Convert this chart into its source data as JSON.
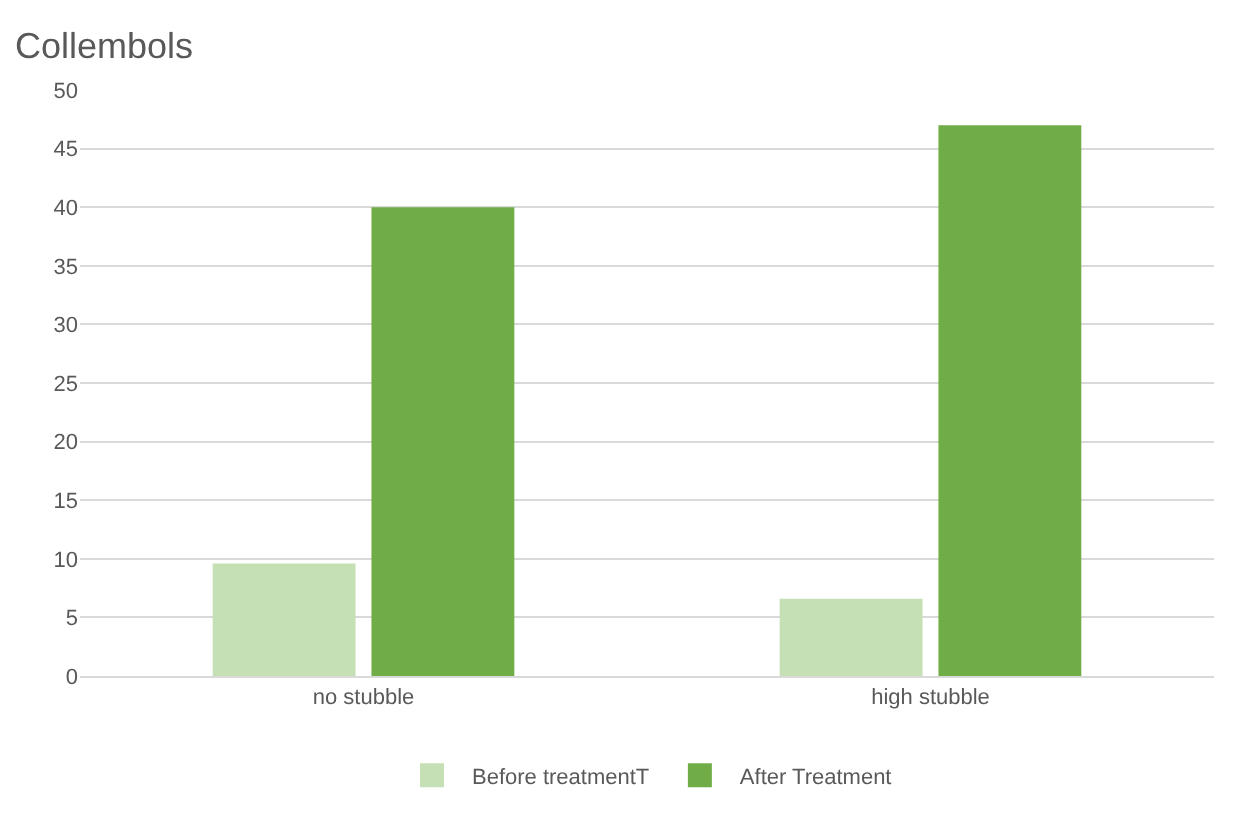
{
  "chart_data": {
    "type": "bar",
    "title": "Collembols",
    "categories": [
      "no stubble",
      "high stubble"
    ],
    "series": [
      {
        "name": "Before treatmentT",
        "color": "#c5e0b4",
        "values": [
          9.6,
          6.6
        ]
      },
      {
        "name": "After Treatment",
        "color": "#70ad47",
        "values": [
          40,
          47
        ]
      }
    ],
    "ylim": [
      0,
      50
    ],
    "yticks": [
      0,
      5,
      10,
      15,
      20,
      25,
      30,
      35,
      40,
      45,
      50
    ],
    "grid": "y",
    "legend": "bottom"
  }
}
